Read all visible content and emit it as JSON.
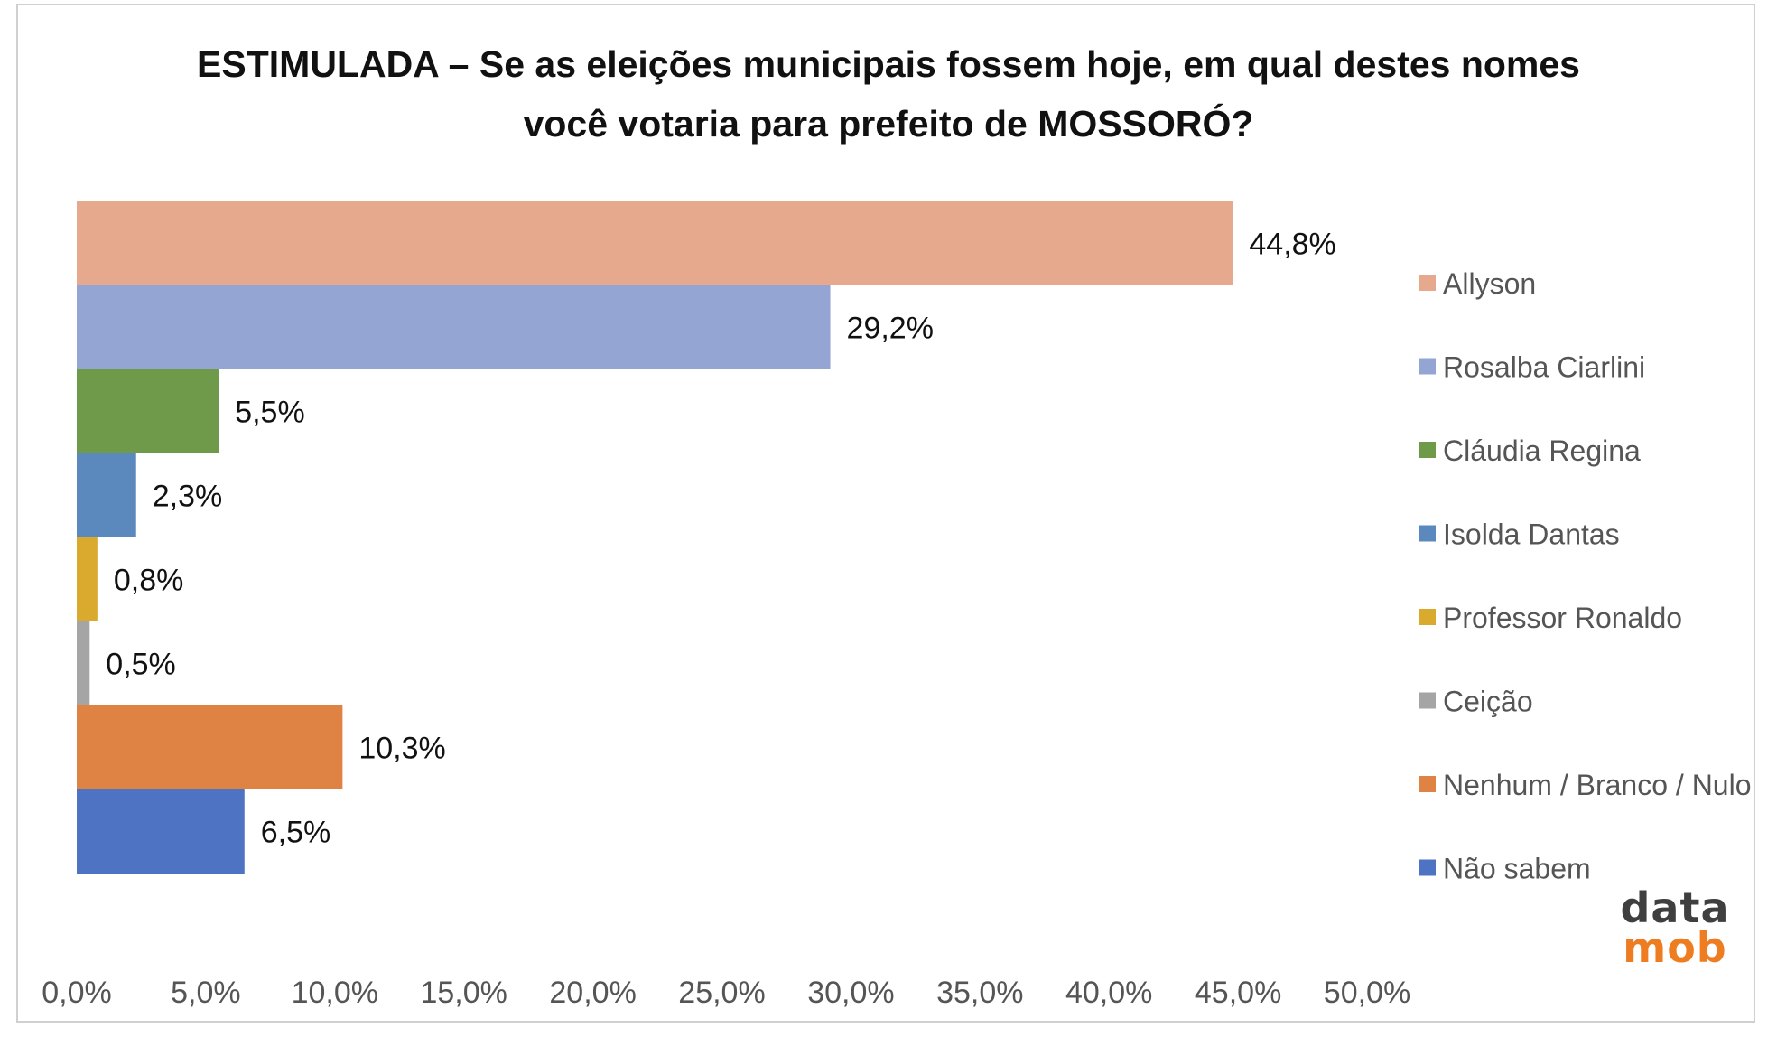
{
  "chart_data": {
    "type": "bar",
    "orientation": "horizontal",
    "title_lines": [
      "ESTIMULADA – Se as eleições municipais fossem hoje, em qual destes nomes",
      "você votaria para prefeito de MOSSORÓ?"
    ],
    "categories": [
      "Allyson",
      "Rosalba Ciarlini",
      "Cláudia Regina",
      "Isolda Dantas",
      "Professor Ronaldo",
      "Ceição",
      "Nenhum / Branco / Nulo",
      "Não sabem"
    ],
    "values": [
      44.8,
      29.2,
      5.5,
      2.3,
      0.8,
      0.5,
      10.3,
      6.5
    ],
    "value_labels": [
      "44,8%",
      "29,2%",
      "5,5%",
      "2,3%",
      "0,8%",
      "0,5%",
      "10,3%",
      "6,5%"
    ],
    "colors": [
      "#e6a98e",
      "#94a5d4",
      "#6f9a4a",
      "#5b89be",
      "#d9aa2d",
      "#a5a5a5",
      "#de8344",
      "#4e73c2"
    ],
    "xlim": [
      0,
      50
    ],
    "x_ticks": [
      0,
      5,
      10,
      15,
      20,
      25,
      30,
      35,
      40,
      45,
      50
    ],
    "x_tick_labels": [
      "0,0%",
      "5,0%",
      "10,0%",
      "15,0%",
      "20,0%",
      "25,0%",
      "30,0%",
      "35,0%",
      "40,0%",
      "45,0%",
      "50,0%"
    ],
    "legend_position": "right",
    "grid": false
  },
  "logo": {
    "line1": "data",
    "line2": "mob"
  }
}
